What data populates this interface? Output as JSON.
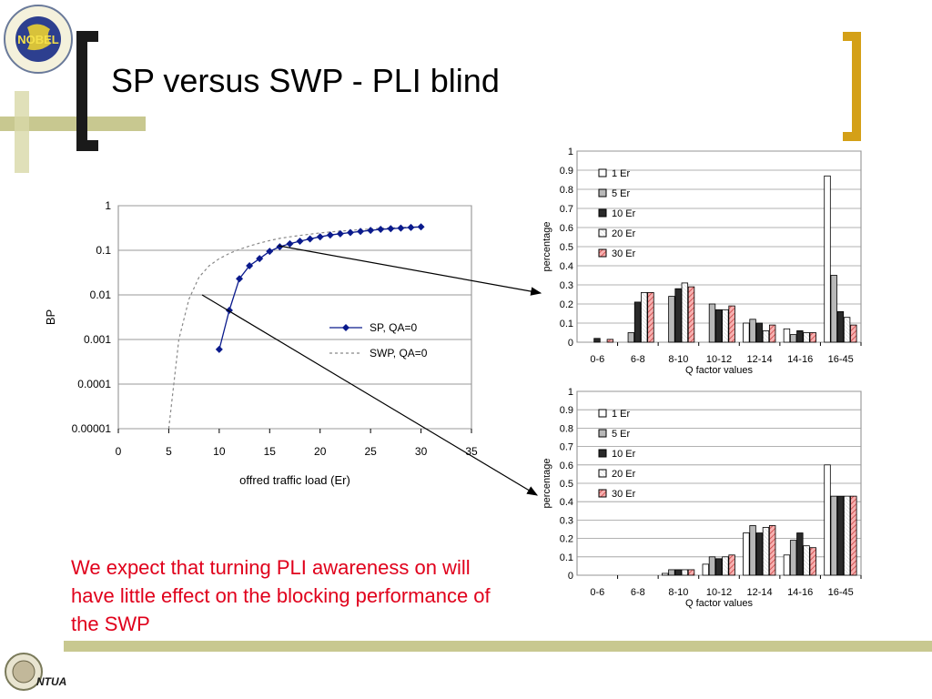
{
  "slide": {
    "title": "SP versus SWP - PLI blind",
    "note": "We expect that turning PLI awareness on will have little effect on the blocking performance of the SWP",
    "top_logo_text": "NOBEL",
    "top_logo_ring": "Next generation Optical networks for Broadband European Leadership",
    "footer_logo_text": "NTUA",
    "colors": {
      "accent_olive": "#c8c890",
      "bracket_gold": "#d4a017",
      "bracket_dark": "#1a1a1a",
      "note_red": "#e0001b",
      "series_navy": "#0a1a8c"
    }
  },
  "chart_data": [
    {
      "type": "line",
      "xlabel": "offred traffic load (Er)",
      "ylabel": "BP",
      "xlim": [
        0,
        35
      ],
      "xticks": [
        "0",
        "5",
        "10",
        "15",
        "20",
        "25",
        "30",
        "35"
      ],
      "ylim": [
        1e-05,
        1
      ],
      "yscale": "log",
      "yticks": [
        "1",
        "0.1",
        "0.01",
        "0.001",
        "0.0001",
        "0.00001"
      ],
      "grid": "horizontal",
      "legend_position": "center-right",
      "series": [
        {
          "name": "SP, QA=0",
          "style": "solid navy line with diamond markers",
          "x": [
            10,
            11,
            12,
            13,
            14,
            15,
            16,
            17,
            18,
            19,
            20,
            21,
            22,
            23,
            24,
            25,
            26,
            27,
            28,
            29,
            30
          ],
          "y": [
            0.0006,
            0.0045,
            0.023,
            0.045,
            0.065,
            0.095,
            0.12,
            0.14,
            0.16,
            0.18,
            0.2,
            0.22,
            0.235,
            0.25,
            0.265,
            0.28,
            0.295,
            0.305,
            0.315,
            0.325,
            0.335
          ]
        },
        {
          "name": "SWP, QA=0",
          "style": "dashed gray line",
          "x": [
            5,
            6,
            7,
            8,
            9,
            10,
            11,
            12,
            13,
            14,
            15,
            16,
            17,
            18,
            19,
            20,
            22,
            24,
            26,
            28,
            30
          ],
          "y": [
            1e-05,
            0.001,
            0.008,
            0.025,
            0.045,
            0.065,
            0.085,
            0.105,
            0.125,
            0.145,
            0.165,
            0.185,
            0.2,
            0.215,
            0.23,
            0.245,
            0.27,
            0.29,
            0.31,
            0.325,
            0.34
          ]
        }
      ]
    },
    {
      "type": "bar",
      "xlabel": "Q factor values",
      "ylabel": "percentage",
      "ylim": [
        0,
        1
      ],
      "yticks": [
        "0",
        "0.1",
        "0.2",
        "0.3",
        "0.4",
        "0.5",
        "0.6",
        "0.7",
        "0.8",
        "0.9",
        "1"
      ],
      "categories": [
        "0-6",
        "6-8",
        "8-10",
        "10-12",
        "12-14",
        "14-16",
        "16-45"
      ],
      "legend_position": "top-left",
      "series": [
        {
          "name": "1 Er",
          "color": "#ffffff",
          "values": [
            0,
            0,
            0,
            0,
            0.1,
            0.07,
            0.87
          ]
        },
        {
          "name": "5 Er",
          "color": "#b8b8b8",
          "values": [
            0,
            0.05,
            0.24,
            0.2,
            0.12,
            0.04,
            0.35
          ]
        },
        {
          "name": "10 Er",
          "color": "#2a2a2a",
          "values": [
            0.02,
            0.21,
            0.28,
            0.17,
            0.1,
            0.06,
            0.16
          ]
        },
        {
          "name": "20 Er",
          "color": "#ffffff",
          "values": [
            0,
            0.26,
            0.31,
            0.17,
            0.06,
            0.05,
            0.13
          ]
        },
        {
          "name": "30 Er",
          "color": "#f08080",
          "values": [
            0.015,
            0.26,
            0.29,
            0.19,
            0.09,
            0.05,
            0.09
          ]
        }
      ]
    },
    {
      "type": "bar",
      "xlabel": "Q factor values",
      "ylabel": "percentage",
      "ylim": [
        0,
        1
      ],
      "yticks": [
        "0",
        "0.1",
        "0.2",
        "0.3",
        "0.4",
        "0.5",
        "0.6",
        "0.7",
        "0.8",
        "0.9",
        "1"
      ],
      "categories": [
        "0-6",
        "6-8",
        "8-10",
        "10-12",
        "12-14",
        "14-16",
        "16-45"
      ],
      "legend_position": "top-left",
      "series": [
        {
          "name": "1 Er",
          "color": "#ffffff",
          "values": [
            0,
            0,
            0.01,
            0.06,
            0.23,
            0.11,
            0.6
          ]
        },
        {
          "name": "5 Er",
          "color": "#b8b8b8",
          "values": [
            0,
            0,
            0.03,
            0.1,
            0.27,
            0.19,
            0.43
          ]
        },
        {
          "name": "10 Er",
          "color": "#2a2a2a",
          "values": [
            0,
            0,
            0.03,
            0.09,
            0.23,
            0.23,
            0.43
          ]
        },
        {
          "name": "20 Er",
          "color": "#ffffff",
          "values": [
            0,
            0,
            0.03,
            0.1,
            0.26,
            0.16,
            0.43
          ]
        },
        {
          "name": "30 Er",
          "color": "#f08080",
          "values": [
            0,
            0,
            0.03,
            0.11,
            0.27,
            0.15,
            0.43
          ]
        }
      ]
    }
  ]
}
